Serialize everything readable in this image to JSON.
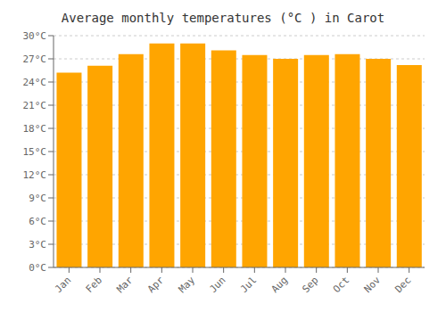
{
  "chart_data": {
    "type": "bar",
    "title": "Average monthly temperatures (°C ) in Carot",
    "categories": [
      "Jan",
      "Feb",
      "Mar",
      "Apr",
      "May",
      "Jun",
      "Jul",
      "Aug",
      "Sep",
      "Oct",
      "Nov",
      "Dec"
    ],
    "values": [
      25.2,
      26.1,
      27.6,
      29.0,
      29.0,
      28.1,
      27.5,
      27.0,
      27.5,
      27.6,
      27.0,
      26.2
    ],
    "color": "#FFA500",
    "ylim": [
      0,
      30
    ],
    "yticks": [
      {
        "value": 0,
        "label": "0°C"
      },
      {
        "value": 3,
        "label": "3°C"
      },
      {
        "value": 6,
        "label": "6°C"
      },
      {
        "value": 9,
        "label": "9°C"
      },
      {
        "value": 12,
        "label": "12°C"
      },
      {
        "value": 15,
        "label": "15°C"
      },
      {
        "value": 18,
        "label": "18°C"
      },
      {
        "value": 21,
        "label": "21°C"
      },
      {
        "value": 24,
        "label": "24°C"
      },
      {
        "value": 27,
        "label": "27°C"
      },
      {
        "value": 30,
        "label": "30°C"
      }
    ],
    "grid": true
  }
}
